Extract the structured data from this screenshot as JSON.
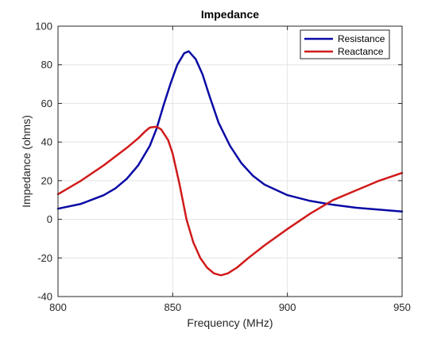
{
  "chart_data": {
    "type": "line",
    "title": "Impedance",
    "xlabel": "Frequency (MHz)",
    "ylabel": "Impedance (ohms)",
    "xlim": [
      800,
      950
    ],
    "ylim": [
      -40,
      100
    ],
    "xticks": [
      800,
      850,
      900,
      950
    ],
    "yticks": [
      -40,
      -20,
      0,
      20,
      40,
      60,
      80,
      100
    ],
    "grid": true,
    "legend_position": "top-right",
    "series": [
      {
        "name": "Resistance",
        "color": "#0a0aa5",
        "x": [
          800,
          810,
          820,
          825,
          830,
          835,
          840,
          843,
          846,
          849,
          852,
          855,
          857,
          860,
          863,
          866,
          870,
          875,
          880,
          885,
          890,
          900,
          910,
          920,
          930,
          940,
          950
        ],
        "y": [
          5.5,
          8,
          12.5,
          16,
          21,
          28,
          38,
          47,
          59,
          70,
          80,
          86,
          87,
          83,
          75,
          64,
          50,
          38,
          29,
          22.5,
          18,
          12.5,
          9.5,
          7.5,
          6,
          5,
          4
        ]
      },
      {
        "name": "Reactance",
        "color": "#d11a1a",
        "x": [
          800,
          810,
          820,
          830,
          835,
          838,
          840,
          843,
          845,
          848,
          850,
          853,
          856,
          859,
          862,
          865,
          868,
          871,
          874,
          878,
          883,
          890,
          900,
          910,
          920,
          930,
          940,
          950
        ],
        "y": [
          13,
          20,
          28,
          37,
          42,
          45.5,
          47.5,
          48,
          46.5,
          41,
          34,
          18,
          0,
          -12,
          -20,
          -25,
          -28,
          -29,
          -28,
          -25,
          -20,
          -13.5,
          -5,
          3,
          10,
          15,
          20,
          24
        ]
      }
    ]
  }
}
